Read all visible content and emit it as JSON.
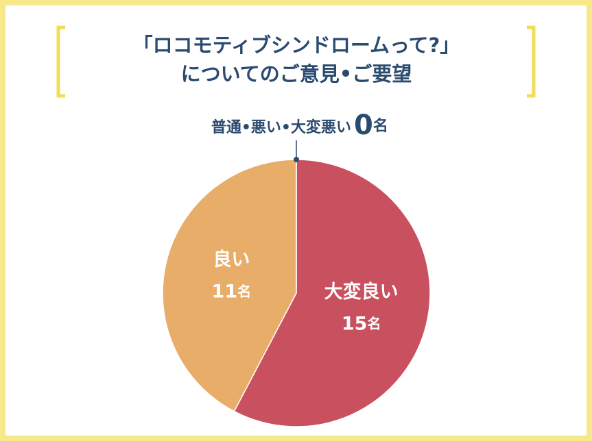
{
  "chart_data": {
    "type": "pie",
    "title": [
      "「ロコモティブシンドロームって?」",
      "についてのご意見•ご要望"
    ],
    "categories": [
      "大変良い",
      "良い",
      "普通•悪い•大変悪い"
    ],
    "values": [
      15,
      11,
      0
    ],
    "value_labels": [
      "15名",
      "11名",
      "0名"
    ],
    "colors": [
      "#c9505f",
      "#e8ad68",
      "#2b4a6f"
    ]
  }
}
